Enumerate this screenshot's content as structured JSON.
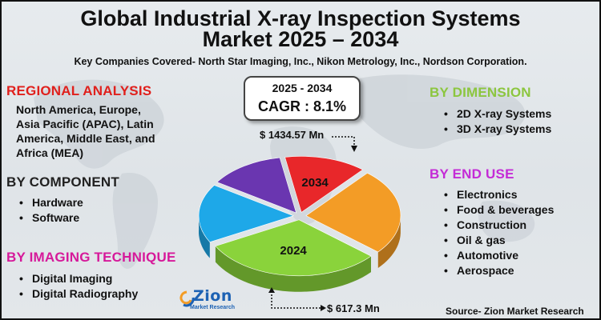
{
  "title_line1": "Global Industrial X-ray Inspection Systems",
  "title_line2": "Market 2025 – 2034",
  "subtitle": "Key Companies Covered- North Star Imaging, Inc., Nikon Metrology, Inc., Nordson Corporation.",
  "regional": {
    "heading": "REGIONAL ANALYSIS",
    "line1": "North America, Europe,",
    "line2": "Asia Pacific (APAC), Latin",
    "line3": "America, Middle East, and",
    "line4": "Africa (MEA)",
    "color": "#e0201c"
  },
  "component": {
    "heading": "BY COMPONENT",
    "items": [
      "Hardware",
      "Software"
    ],
    "color": "#222222"
  },
  "imaging": {
    "heading": "BY IMAGING TECHNIQUE",
    "items": [
      "Digital Imaging",
      "Digital Radiography"
    ],
    "color": "#d6199a"
  },
  "dimension": {
    "heading": "BY DIMENSION",
    "items": [
      "2D X-ray Systems",
      "3D X-ray Systems"
    ],
    "color": "#8cc63f"
  },
  "end_use": {
    "heading": "BY END USE",
    "items": [
      "Electronics",
      "Food & beverages",
      "Construction",
      "Oil & gas",
      "Automotive",
      "Aerospace"
    ],
    "color": "#c42bd6"
  },
  "cagr": {
    "period": "2025 - 2034",
    "value": "CAGR : 8.1%"
  },
  "amounts": {
    "end": "$ 1434.57  Mn",
    "start": "$ 617.3 Mn"
  },
  "logo": {
    "word": "Zion",
    "sub": "Market Research"
  },
  "source": "Source- Zion Market Research",
  "chart_data": {
    "type": "pie",
    "slices": [
      {
        "label": "2034",
        "color": "#e8272a",
        "share": 0.14
      },
      {
        "label": "",
        "color": "#f39c26",
        "share": 0.25
      },
      {
        "label": "2024",
        "color": "#8ad33b",
        "share": 0.31
      },
      {
        "label": "",
        "color": "#1ea8e8",
        "share": 0.17
      },
      {
        "label": "",
        "color": "#6a36b0",
        "share": 0.13
      }
    ],
    "annotations": [
      "$ 1434.57  Mn",
      "$ 617.3 Mn"
    ]
  }
}
